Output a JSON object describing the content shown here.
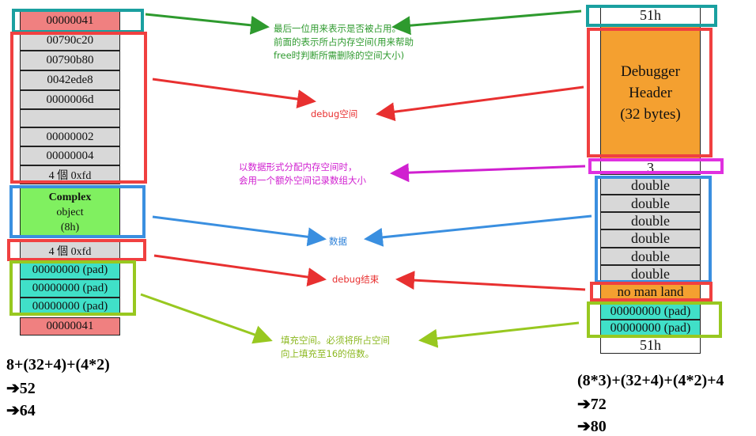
{
  "left_block": {
    "cells": [
      "00000041",
      "00790c20",
      "00790b80",
      "0042ede8",
      "0000006d",
      "",
      "00000002",
      "00000004",
      "4 個 0xfd"
    ],
    "object": {
      "line1": "Complex",
      "line2": "object",
      "line3": "(8h)"
    },
    "no_mans_land": "4 個 0xfd",
    "pads": [
      "00000000 (pad)",
      "00000000 (pad)",
      "00000000 (pad)"
    ],
    "tail": "00000041"
  },
  "right_block": {
    "head": "51h",
    "debugger_header": {
      "line1": "Debugger",
      "line2": "Header",
      "line3": "(32 bytes)"
    },
    "count": "3",
    "doubles": [
      "double",
      "double",
      "double",
      "double",
      "double",
      "double"
    ],
    "no_man_land": "no man land",
    "pads": [
      "00000000 (pad)",
      "00000000 (pad)"
    ],
    "tail": "51h"
  },
  "annotations": {
    "cookie": [
      "最后一位用来表示是否被占用。",
      "前面的表示所占内存空间(用来帮助",
      "free时判断所需删除的空间大小)"
    ],
    "debug_space": "debug空间",
    "array_count": [
      "以数据形式分配内存空间时，",
      "会用一个额外空间记录数组大小"
    ],
    "data": "数据",
    "debug_end": "debug结束",
    "padding": [
      "填充空间。必须将所占空间",
      "向上填充至16的倍数。"
    ]
  },
  "formulas": {
    "left": {
      "expr": "8+(32+4)+(4*2)",
      "step1": "➔52",
      "step2": "➔64"
    },
    "right": {
      "expr": "(8*3)+(32+4)+(4*2)+4",
      "step1": "➔72",
      "step2": "➔80"
    }
  },
  "colors": {
    "teal_frame": "#1aa0a0",
    "red_frame": "#f04040",
    "blue_frame": "#3a8fe0",
    "magenta_frame": "#e030e0",
    "lime_frame": "#98c820",
    "green_text": "#2e9a2e",
    "red_text": "#e83030",
    "magenta_text": "#d020d0",
    "blue_text": "#2a7fd8",
    "lime_text": "#8cb820"
  }
}
